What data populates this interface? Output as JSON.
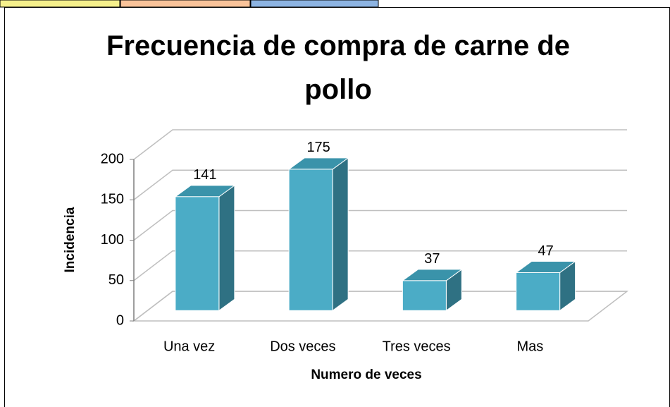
{
  "chart_data": {
    "type": "bar",
    "title": "Frecuencia de compra de carne de pollo",
    "x_label": "Numero de veces",
    "y_label": "Incidencia",
    "categories": [
      "Una vez",
      "Dos veces",
      "Tres veces",
      "Mas"
    ],
    "values": [
      141,
      175,
      37,
      47
    ],
    "color": "#4bacc6",
    "ylim": [
      0,
      200
    ],
    "yticks": [
      0,
      50,
      100,
      150,
      200
    ],
    "grid": true
  }
}
